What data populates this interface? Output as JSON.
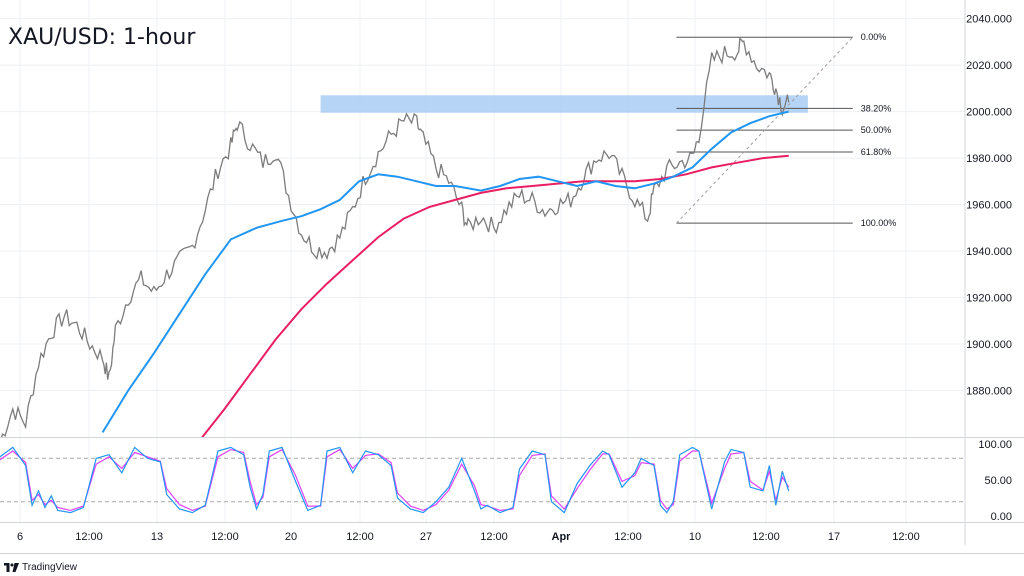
{
  "title": "XAU/USD: 1-hour",
  "footer": {
    "brand": "TradingView",
    "logo_icon": "tradingview-logo-icon"
  },
  "chart_data": {
    "type": "candlestick",
    "title": "XAU/USD: 1-hour",
    "price_axis": {
      "ylim": [
        1860,
        2048
      ],
      "ticks": [
        "2040.000",
        "2020.000",
        "2000.000",
        "1980.000",
        "1960.000",
        "1940.000",
        "1920.000",
        "1900.000",
        "1880.000"
      ]
    },
    "time_axis": {
      "ticks": [
        "6",
        "12:00",
        "13",
        "12:00",
        "20",
        "12:00",
        "27",
        "12:00",
        "Apr",
        "12:00",
        "10",
        "12:00",
        "17",
        "12:00"
      ],
      "bold_ticks": [
        "Apr"
      ]
    },
    "price_series": {
      "name": "",
      "color": "#7c7c7c",
      "points": [
        [
          0,
          1858
        ],
        [
          4,
          1872
        ],
        [
          8,
          1866
        ],
        [
          12,
          1892
        ],
        [
          16,
          1905
        ],
        [
          20,
          1912
        ],
        [
          24,
          1908
        ],
        [
          28,
          1900
        ],
        [
          32,
          1894
        ],
        [
          34,
          1885
        ],
        [
          36,
          1906
        ],
        [
          40,
          1920
        ],
        [
          44,
          1928
        ],
        [
          48,
          1922
        ],
        [
          52,
          1930
        ],
        [
          56,
          1936
        ],
        [
          60,
          1942
        ],
        [
          64,
          1958
        ],
        [
          68,
          1975
        ],
        [
          72,
          1985
        ],
        [
          74,
          1995
        ],
        [
          78,
          1986
        ],
        [
          82,
          1978
        ],
        [
          86,
          1983
        ],
        [
          90,
          1964
        ],
        [
          94,
          1948
        ],
        [
          98,
          1941
        ],
        [
          102,
          1940
        ],
        [
          106,
          1946
        ],
        [
          110,
          1958
        ],
        [
          114,
          1972
        ],
        [
          118,
          1982
        ],
        [
          122,
          1990
        ],
        [
          126,
          1996
        ],
        [
          130,
          1995
        ],
        [
          132,
          1988
        ],
        [
          136,
          1976
        ],
        [
          140,
          1970
        ],
        [
          144,
          1958
        ],
        [
          146,
          1950
        ],
        [
          150,
          1955
        ],
        [
          154,
          1950
        ],
        [
          158,
          1958
        ],
        [
          162,
          1964
        ],
        [
          166,
          1962
        ],
        [
          170,
          1957
        ],
        [
          174,
          1960
        ],
        [
          178,
          1962
        ],
        [
          182,
          1972
        ],
        [
          186,
          1980
        ],
        [
          190,
          1982
        ],
        [
          194,
          1972
        ],
        [
          198,
          1962
        ],
        [
          202,
          1954
        ],
        [
          204,
          1966
        ],
        [
          208,
          1975
        ],
        [
          212,
          1978
        ],
        [
          216,
          1980
        ],
        [
          218,
          1990
        ],
        [
          222,
          2022
        ],
        [
          226,
          2025
        ],
        [
          230,
          2026
        ],
        [
          232,
          2030
        ],
        [
          236,
          2020
        ],
        [
          240,
          2016
        ],
        [
          242,
          2010
        ],
        [
          244,
          2002
        ],
        [
          246,
          2004
        ]
      ]
    },
    "ma_fast": {
      "name": "",
      "color": "#2196f3",
      "points": [
        [
          32,
          1862
        ],
        [
          40,
          1880
        ],
        [
          48,
          1896
        ],
        [
          56,
          1913
        ],
        [
          64,
          1930
        ],
        [
          72,
          1945
        ],
        [
          80,
          1950
        ],
        [
          88,
          1953
        ],
        [
          94,
          1955
        ],
        [
          100,
          1958
        ],
        [
          106,
          1962
        ],
        [
          112,
          1970
        ],
        [
          118,
          1973
        ],
        [
          124,
          1972
        ],
        [
          130,
          1970
        ],
        [
          136,
          1968
        ],
        [
          142,
          1968
        ],
        [
          150,
          1966
        ],
        [
          156,
          1968
        ],
        [
          162,
          1971
        ],
        [
          168,
          1972
        ],
        [
          174,
          1970
        ],
        [
          180,
          1968
        ],
        [
          186,
          1970
        ],
        [
          192,
          1968
        ],
        [
          198,
          1967
        ],
        [
          204,
          1969
        ],
        [
          210,
          1972
        ],
        [
          216,
          1976
        ],
        [
          222,
          1984
        ],
        [
          228,
          1991
        ],
        [
          234,
          1995
        ],
        [
          240,
          1998
        ],
        [
          246,
          2000
        ]
      ]
    },
    "ma_slow": {
      "name": "",
      "color": "#e91e63",
      "points": [
        [
          62,
          1858
        ],
        [
          70,
          1872
        ],
        [
          78,
          1887
        ],
        [
          86,
          1902
        ],
        [
          94,
          1915
        ],
        [
          102,
          1926
        ],
        [
          110,
          1936
        ],
        [
          118,
          1946
        ],
        [
          126,
          1954
        ],
        [
          134,
          1959
        ],
        [
          142,
          1962
        ],
        [
          150,
          1965
        ],
        [
          158,
          1967
        ],
        [
          166,
          1968
        ],
        [
          174,
          1969
        ],
        [
          182,
          1970
        ],
        [
          190,
          1970
        ],
        [
          198,
          1970
        ],
        [
          206,
          1971
        ],
        [
          214,
          1973
        ],
        [
          222,
          1976
        ],
        [
          230,
          1978
        ],
        [
          238,
          1980
        ],
        [
          246,
          1981
        ]
      ]
    },
    "resistance_zone": {
      "y_low": 1999.5,
      "y_high": 2007,
      "x_start": 100,
      "x_end": 252,
      "color": "#a9cdf3"
    },
    "fib_retracement": {
      "x_start": 211,
      "x_end": 266,
      "high": 2032,
      "low": 1952,
      "levels": [
        {
          "label": "0.00%",
          "value": 2032.0
        },
        {
          "label": "38.20%",
          "value": 2001.4
        },
        {
          "label": "50.00%",
          "value": 1992.0
        },
        {
          "label": "61.80%",
          "value": 1982.6
        },
        {
          "label": "100.00%",
          "value": 1952.0
        }
      ],
      "trend_line": {
        "from": [
          211,
          1952
        ],
        "to": [
          266,
          2032
        ]
      }
    },
    "oscillator": {
      "type": "stochastic",
      "ylim": [
        -8,
        108
      ],
      "ticks": [
        "100.00",
        "50.00",
        "0.00"
      ],
      "bands": [
        80,
        20
      ],
      "band_color": "#a9a9a9",
      "k_color": "#2196f3",
      "d_color": "#e040fb",
      "k": [
        [
          0,
          82
        ],
        [
          4,
          95
        ],
        [
          8,
          70
        ],
        [
          10,
          15
        ],
        [
          12,
          35
        ],
        [
          14,
          12
        ],
        [
          16,
          28
        ],
        [
          18,
          8
        ],
        [
          22,
          5
        ],
        [
          26,
          12
        ],
        [
          30,
          80
        ],
        [
          34,
          85
        ],
        [
          38,
          60
        ],
        [
          42,
          95
        ],
        [
          46,
          80
        ],
        [
          50,
          75
        ],
        [
          52,
          30
        ],
        [
          56,
          10
        ],
        [
          60,
          5
        ],
        [
          64,
          15
        ],
        [
          68,
          90
        ],
        [
          72,
          95
        ],
        [
          76,
          85
        ],
        [
          78,
          40
        ],
        [
          80,
          10
        ],
        [
          82,
          30
        ],
        [
          84,
          90
        ],
        [
          88,
          95
        ],
        [
          92,
          50
        ],
        [
          96,
          8
        ],
        [
          100,
          15
        ],
        [
          102,
          90
        ],
        [
          106,
          95
        ],
        [
          110,
          60
        ],
        [
          114,
          90
        ],
        [
          118,
          85
        ],
        [
          122,
          70
        ],
        [
          124,
          25
        ],
        [
          128,
          10
        ],
        [
          132,
          5
        ],
        [
          136,
          20
        ],
        [
          140,
          40
        ],
        [
          144,
          80
        ],
        [
          148,
          35
        ],
        [
          150,
          10
        ],
        [
          152,
          15
        ],
        [
          156,
          5
        ],
        [
          160,
          12
        ],
        [
          162,
          65
        ],
        [
          166,
          90
        ],
        [
          170,
          85
        ],
        [
          172,
          20
        ],
        [
          176,
          5
        ],
        [
          180,
          45
        ],
        [
          184,
          70
        ],
        [
          188,
          90
        ],
        [
          190,
          85
        ],
        [
          194,
          40
        ],
        [
          198,
          60
        ],
        [
          200,
          80
        ],
        [
          204,
          70
        ],
        [
          206,
          15
        ],
        [
          208,
          5
        ],
        [
          210,
          20
        ],
        [
          212,
          85
        ],
        [
          216,
          95
        ],
        [
          218,
          90
        ],
        [
          222,
          10
        ],
        [
          226,
          75
        ],
        [
          228,
          92
        ],
        [
          232,
          88
        ],
        [
          234,
          40
        ],
        [
          238,
          35
        ],
        [
          240,
          70
        ],
        [
          242,
          15
        ],
        [
          244,
          62
        ],
        [
          246,
          35
        ]
      ],
      "d": [
        [
          0,
          78
        ],
        [
          4,
          90
        ],
        [
          8,
          74
        ],
        [
          10,
          22
        ],
        [
          12,
          30
        ],
        [
          14,
          16
        ],
        [
          16,
          22
        ],
        [
          18,
          12
        ],
        [
          22,
          8
        ],
        [
          26,
          14
        ],
        [
          30,
          72
        ],
        [
          34,
          82
        ],
        [
          38,
          66
        ],
        [
          42,
          88
        ],
        [
          46,
          82
        ],
        [
          50,
          76
        ],
        [
          52,
          38
        ],
        [
          56,
          16
        ],
        [
          60,
          8
        ],
        [
          64,
          14
        ],
        [
          68,
          82
        ],
        [
          72,
          92
        ],
        [
          76,
          88
        ],
        [
          78,
          48
        ],
        [
          80,
          16
        ],
        [
          82,
          26
        ],
        [
          84,
          82
        ],
        [
          88,
          92
        ],
        [
          92,
          58
        ],
        [
          96,
          14
        ],
        [
          100,
          14
        ],
        [
          102,
          82
        ],
        [
          106,
          92
        ],
        [
          110,
          66
        ],
        [
          114,
          84
        ],
        [
          118,
          86
        ],
        [
          122,
          74
        ],
        [
          124,
          32
        ],
        [
          128,
          14
        ],
        [
          132,
          8
        ],
        [
          136,
          16
        ],
        [
          140,
          36
        ],
        [
          144,
          72
        ],
        [
          148,
          42
        ],
        [
          150,
          16
        ],
        [
          152,
          14
        ],
        [
          156,
          8
        ],
        [
          160,
          10
        ],
        [
          162,
          56
        ],
        [
          166,
          84
        ],
        [
          170,
          86
        ],
        [
          172,
          28
        ],
        [
          176,
          10
        ],
        [
          180,
          38
        ],
        [
          184,
          64
        ],
        [
          188,
          86
        ],
        [
          190,
          86
        ],
        [
          194,
          48
        ],
        [
          198,
          56
        ],
        [
          200,
          74
        ],
        [
          204,
          72
        ],
        [
          206,
          22
        ],
        [
          208,
          10
        ],
        [
          210,
          16
        ],
        [
          212,
          76
        ],
        [
          216,
          90
        ],
        [
          218,
          90
        ],
        [
          222,
          18
        ],
        [
          226,
          66
        ],
        [
          228,
          86
        ],
        [
          232,
          88
        ],
        [
          234,
          48
        ],
        [
          238,
          36
        ],
        [
          240,
          62
        ],
        [
          242,
          22
        ],
        [
          244,
          54
        ],
        [
          246,
          40
        ]
      ]
    },
    "colors": {
      "grid": "#eef0f3",
      "border": "#d1d4dc",
      "text": "#131722",
      "fib_line": "#555555",
      "dash_line": "#9e9e9e"
    }
  }
}
